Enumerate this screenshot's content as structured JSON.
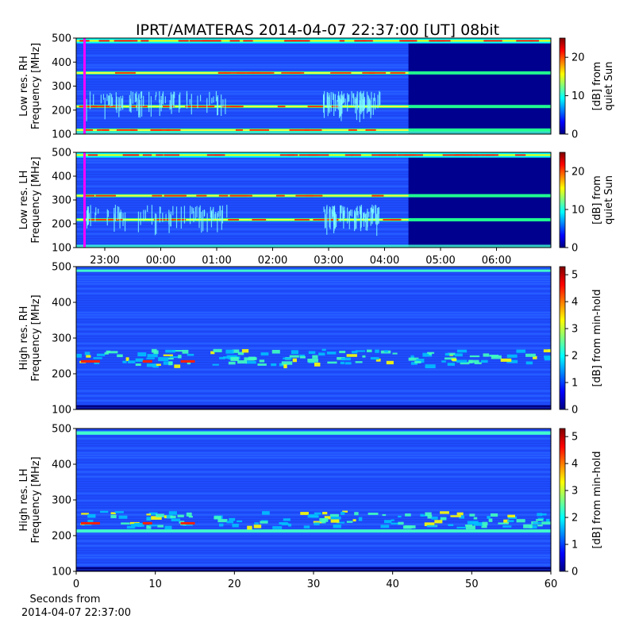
{
  "title": "IPRT/AMATERAS 2014-04-07 22:37:00 [UT]   08bit",
  "x_footer": [
    "Seconds from",
    "2014-04-07 22:37:00"
  ],
  "colormap": [
    "#00007f",
    "#0000ff",
    "#007fff",
    "#00ffff",
    "#7fff7f",
    "#ffff00",
    "#ff7f00",
    "#ff0000",
    "#7f0000"
  ],
  "chart_data": [
    {
      "type": "heatmap",
      "ylabel": [
        "Low res. RH",
        "Frequency [MHz]"
      ],
      "ylim": [
        100,
        500
      ],
      "yticks": [
        "100",
        "200",
        "300",
        "400",
        "500"
      ],
      "x_time_ticks": [
        "23:00",
        "00:00",
        "01:00",
        "02:00",
        "03:00",
        "04:00",
        "05:00",
        "06:00"
      ],
      "colorbar": {
        "label": [
          "[dB] from",
          "quiet Sun"
        ],
        "range": [
          0,
          25
        ],
        "ticks": [
          "0",
          "10",
          "20"
        ]
      },
      "bright_bands_MHz": [
        117,
        215,
        355,
        487
      ],
      "marker_color": "#ff00ff"
    },
    {
      "type": "heatmap",
      "ylabel": [
        "Low res. LH",
        "Frequency [MHz]"
      ],
      "ylim": [
        100,
        500
      ],
      "yticks": [
        "100",
        "200",
        "300",
        "400",
        "500"
      ],
      "colorbar": {
        "label": [
          "[dB] from",
          "quiet Sun"
        ],
        "range": [
          0,
          25
        ],
        "ticks": [
          "0",
          "10",
          "20"
        ]
      },
      "bright_bands_MHz": [
        217,
        318,
        487
      ],
      "marker_color": "#ff00ff"
    },
    {
      "type": "heatmap",
      "ylabel": [
        "High res. RH",
        "Frequency [MHz]"
      ],
      "ylim": [
        100,
        500
      ],
      "yticks": [
        "100",
        "200",
        "300",
        "400",
        "500"
      ],
      "colorbar": {
        "label": [
          "[dB] from min-hold"
        ],
        "range": [
          0,
          5.3
        ],
        "ticks": [
          "0",
          "1",
          "2",
          "3",
          "4",
          "5"
        ]
      },
      "burst_band_MHz": [
        225,
        270
      ]
    },
    {
      "type": "heatmap",
      "ylabel": [
        "High res. LH",
        "Frequency [MHz]"
      ],
      "ylim": [
        100,
        500
      ],
      "yticks": [
        "100",
        "200",
        "300",
        "400",
        "500"
      ],
      "xlim": [
        0,
        60
      ],
      "xticks": [
        "0",
        "10",
        "20",
        "30",
        "40",
        "50",
        "60"
      ],
      "colorbar": {
        "label": [
          "[dB] from min-hold"
        ],
        "range": [
          0,
          5.3
        ],
        "ticks": [
          "0",
          "1",
          "2",
          "3",
          "4",
          "5"
        ]
      },
      "burst_band_MHz": [
        225,
        270
      ],
      "bright_bands_MHz": [
        213,
        487
      ]
    }
  ]
}
